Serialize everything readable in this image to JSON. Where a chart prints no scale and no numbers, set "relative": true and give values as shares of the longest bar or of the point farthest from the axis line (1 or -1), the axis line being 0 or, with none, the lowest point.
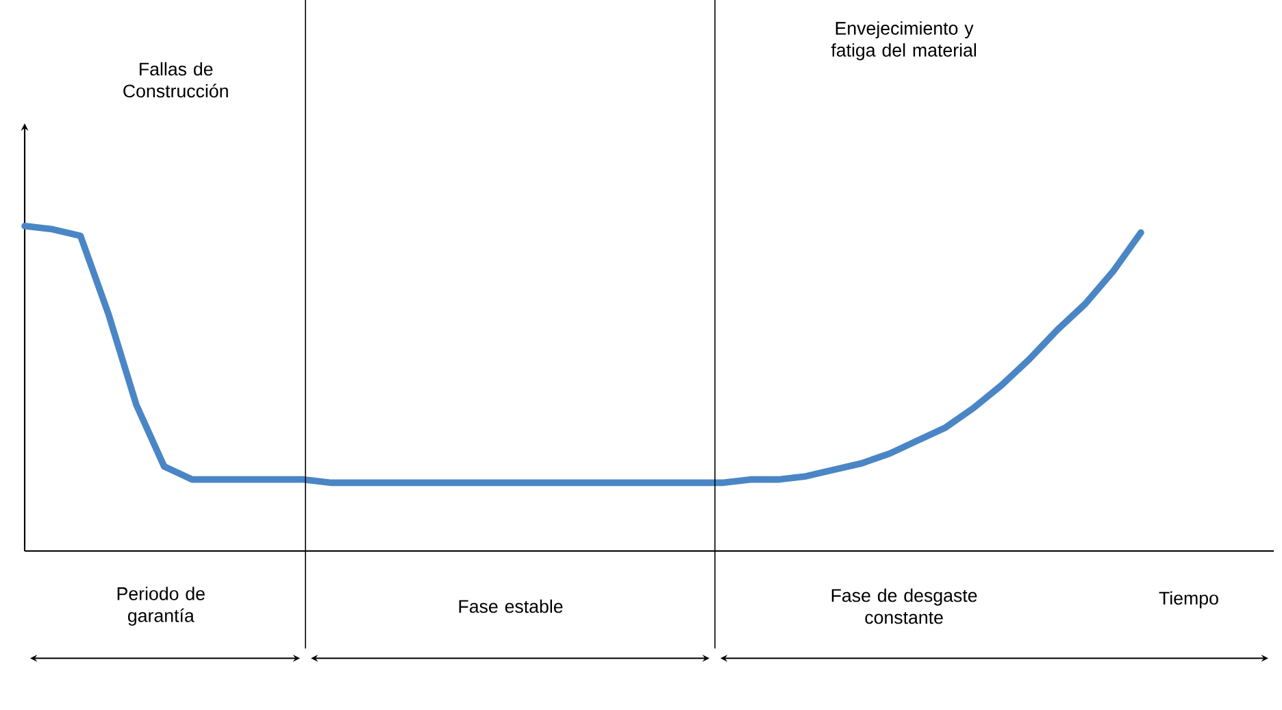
{
  "chart_data": {
    "type": "line",
    "relative": true,
    "tick_labels": false,
    "xlabel": "Tiempo",
    "line_style": "solid",
    "marker": "none",
    "categories": [
      null,
      null,
      null,
      null,
      null,
      null,
      null,
      null,
      null,
      null,
      null,
      null,
      null,
      null,
      null,
      null,
      null,
      null,
      null,
      null,
      null,
      null,
      null,
      null,
      null,
      null,
      null,
      null,
      null,
      null,
      null,
      null,
      null,
      null,
      null,
      null,
      null,
      null,
      null,
      null,
      null
    ],
    "series": [
      {
        "color": "#4a86c5",
        "values": [
          1.0,
          0.99,
          0.97,
          0.73,
          0.45,
          0.26,
          0.22,
          0.22,
          0.22,
          0.22,
          0.22,
          0.21,
          0.21,
          0.21,
          0.21,
          0.21,
          0.21,
          0.21,
          0.21,
          0.21,
          0.21,
          0.21,
          0.21,
          0.21,
          0.21,
          0.21,
          0.22,
          0.22,
          0.23,
          0.25,
          0.27,
          0.3,
          0.34,
          0.38,
          0.44,
          0.51,
          0.59,
          0.68,
          0.76,
          0.86,
          0.98
        ]
      }
    ],
    "annotations": [
      "Fallas de Construcción",
      "Envejecimiento y fatiga del material",
      "Periodo de garantía",
      "Fase estable",
      "Fase de desgaste constante"
    ]
  }
}
